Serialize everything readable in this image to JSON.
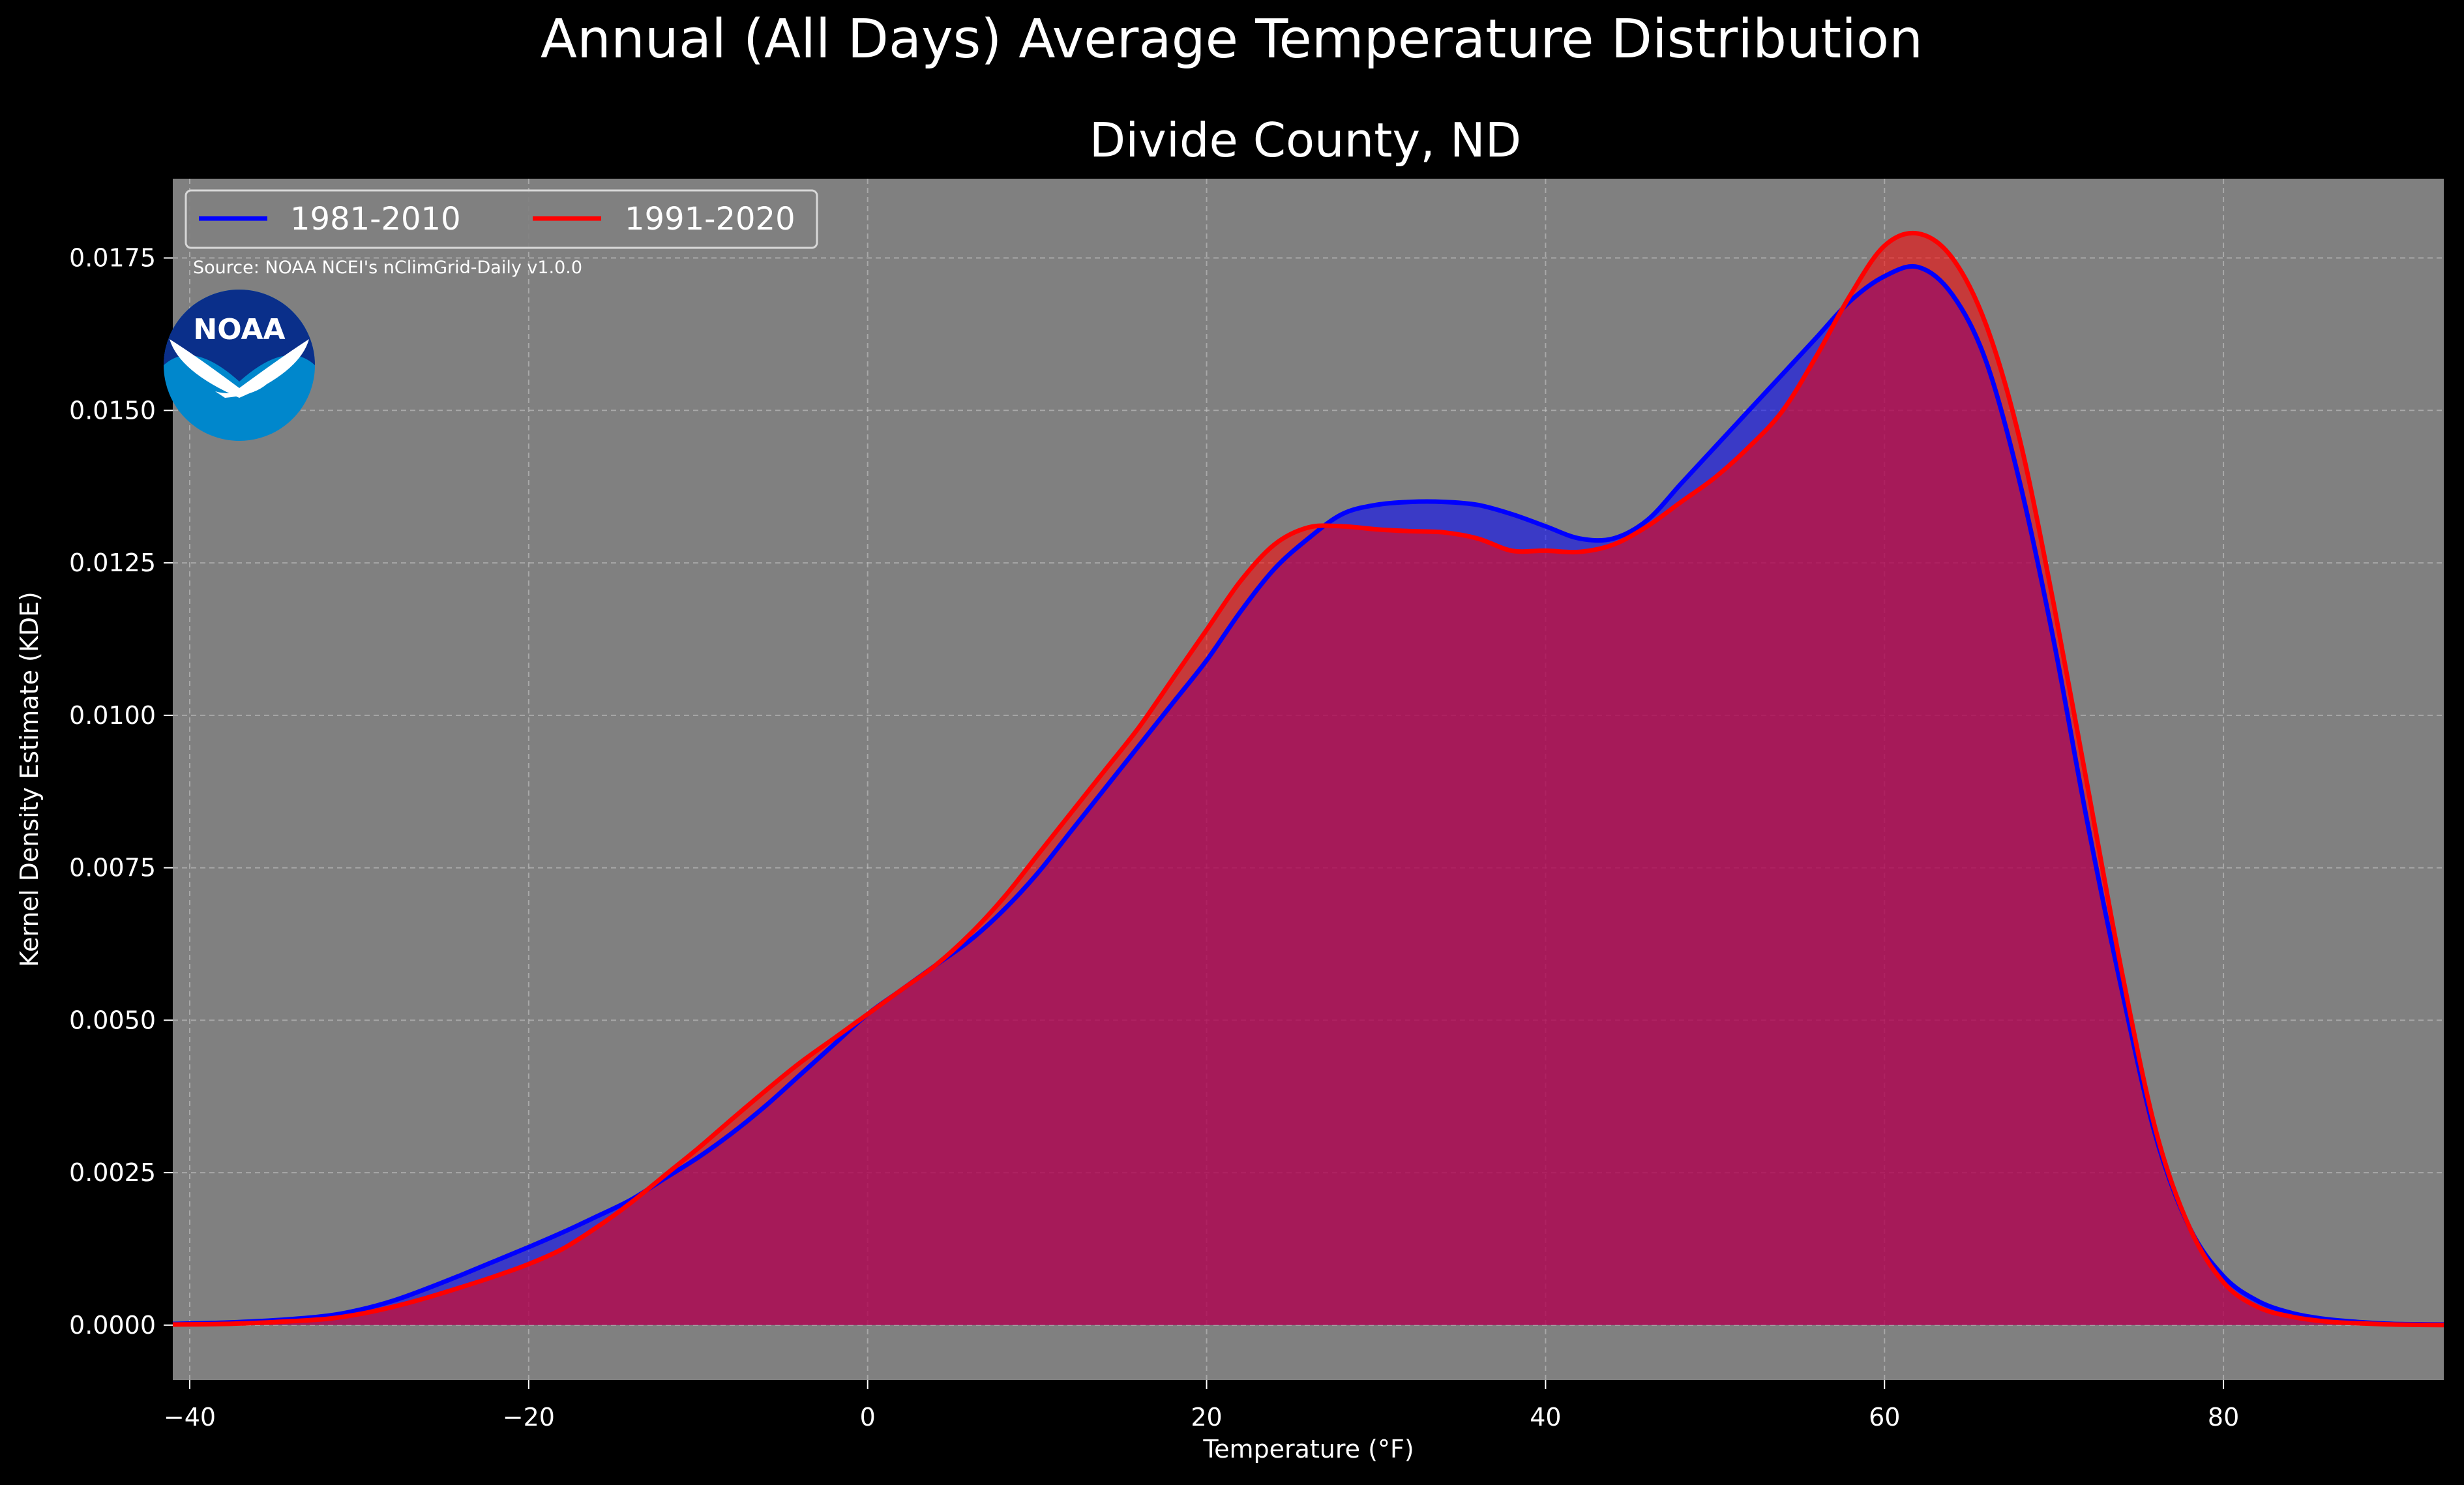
{
  "colors": {
    "background": "#000000",
    "plot_bg": "#808080",
    "grid": "#c8c8c8",
    "text": "#ffffff",
    "series_1981": "#0000ff",
    "series_1991": "#ff0000",
    "noaa_dark": "#0a2f8a",
    "noaa_light": "#0087cc"
  },
  "logo": {
    "name": "noaa-logo-icon",
    "text": "NOAA"
  },
  "chart_data": {
    "type": "area",
    "title": "Annual (All Days) Average Temperature Distribution",
    "subtitle": "Divide County, ND",
    "xlabel": "Temperature (°F)",
    "ylabel": "Kernel Density Estimate (KDE)",
    "xlim": [
      -41,
      93
    ],
    "ylim": [
      -0.0009,
      0.0188
    ],
    "x_ticks": [
      -40,
      -20,
      0,
      20,
      40,
      60,
      80
    ],
    "x_tick_labels": [
      "−40",
      "−20",
      "0",
      "20",
      "40",
      "60",
      "80"
    ],
    "y_ticks": [
      0,
      0.0025,
      0.005,
      0.0075,
      0.01,
      0.0125,
      0.015,
      0.0175
    ],
    "y_tick_labels": [
      "0.0000",
      "0.0025",
      "0.0050",
      "0.0075",
      "0.0100",
      "0.0125",
      "0.0150",
      "0.0175"
    ],
    "grid": true,
    "legend": {
      "placement": "top-left",
      "ncol": 2
    },
    "annotation": "Source: NOAA NCEI's nClimGrid-Daily v1.0.0",
    "series": [
      {
        "name": "1981-2010",
        "color": "#0000ff",
        "x": [
          -41,
          -38,
          -35,
          -32,
          -30,
          -28,
          -26,
          -24,
          -22,
          -20,
          -18,
          -16,
          -14,
          -12,
          -10,
          -8,
          -6,
          -4,
          -2,
          0,
          2,
          4,
          6,
          8,
          10,
          12,
          14,
          16,
          18,
          20,
          22,
          24,
          26,
          28,
          30,
          32,
          34,
          36,
          38,
          40,
          42,
          44,
          46,
          48,
          50,
          52,
          54,
          56,
          58,
          60,
          62,
          64,
          66,
          68,
          70,
          72,
          74,
          76,
          78,
          80,
          82,
          84,
          86,
          88,
          90,
          93
        ],
        "values": [
          2e-05,
          4e-05,
          8e-05,
          0.00015,
          0.00025,
          0.0004,
          0.0006,
          0.00082,
          0.00105,
          0.00128,
          0.00152,
          0.00178,
          0.00205,
          0.0024,
          0.00275,
          0.00315,
          0.0036,
          0.0041,
          0.0046,
          0.0051,
          0.0055,
          0.0059,
          0.0063,
          0.0068,
          0.0074,
          0.0081,
          0.0088,
          0.0095,
          0.0102,
          0.0109,
          0.0117,
          0.0124,
          0.0129,
          0.0133,
          0.01345,
          0.0135,
          0.0135,
          0.01345,
          0.0133,
          0.0131,
          0.0129,
          0.0129,
          0.0132,
          0.0138,
          0.0144,
          0.015,
          0.0156,
          0.0162,
          0.0168,
          0.0172,
          0.01735,
          0.0169,
          0.0158,
          0.0138,
          0.0112,
          0.0082,
          0.0055,
          0.0031,
          0.0016,
          0.0008,
          0.0004,
          0.0002,
          0.0001,
          5e-05,
          2e-05,
          1e-05
        ]
      },
      {
        "name": "1991-2020",
        "color": "#ff0000",
        "x": [
          -41,
          -38,
          -35,
          -32,
          -30,
          -28,
          -26,
          -24,
          -22,
          -20,
          -18,
          -16,
          -14,
          -12,
          -10,
          -8,
          -6,
          -4,
          -2,
          0,
          2,
          4,
          6,
          8,
          10,
          12,
          14,
          16,
          18,
          20,
          22,
          24,
          26,
          28,
          30,
          32,
          34,
          36,
          38,
          40,
          42,
          44,
          46,
          48,
          50,
          52,
          54,
          56,
          58,
          60,
          62,
          64,
          66,
          68,
          70,
          72,
          74,
          76,
          78,
          80,
          82,
          84,
          86,
          88,
          90,
          93
        ],
        "values": [
          1e-05,
          2e-05,
          5e-05,
          0.0001,
          0.00018,
          0.0003,
          0.00045,
          0.00062,
          0.0008,
          0.001,
          0.00125,
          0.0016,
          0.002,
          0.00245,
          0.0029,
          0.00338,
          0.00385,
          0.0043,
          0.0047,
          0.0051,
          0.0055,
          0.0059,
          0.0064,
          0.007,
          0.0077,
          0.0084,
          0.0091,
          0.0098,
          0.0106,
          0.0114,
          0.0122,
          0.0128,
          0.01308,
          0.0131,
          0.01305,
          0.01302,
          0.013,
          0.0129,
          0.0127,
          0.0127,
          0.01268,
          0.0128,
          0.0131,
          0.0135,
          0.0139,
          0.0144,
          0.015,
          0.0159,
          0.0169,
          0.0177,
          0.0179,
          0.0175,
          0.0164,
          0.0145,
          0.0118,
          0.0088,
          0.0058,
          0.0032,
          0.0016,
          0.0007,
          0.0003,
          0.00014,
          6e-05,
          3e-05,
          1e-05,
          0
        ]
      }
    ]
  }
}
